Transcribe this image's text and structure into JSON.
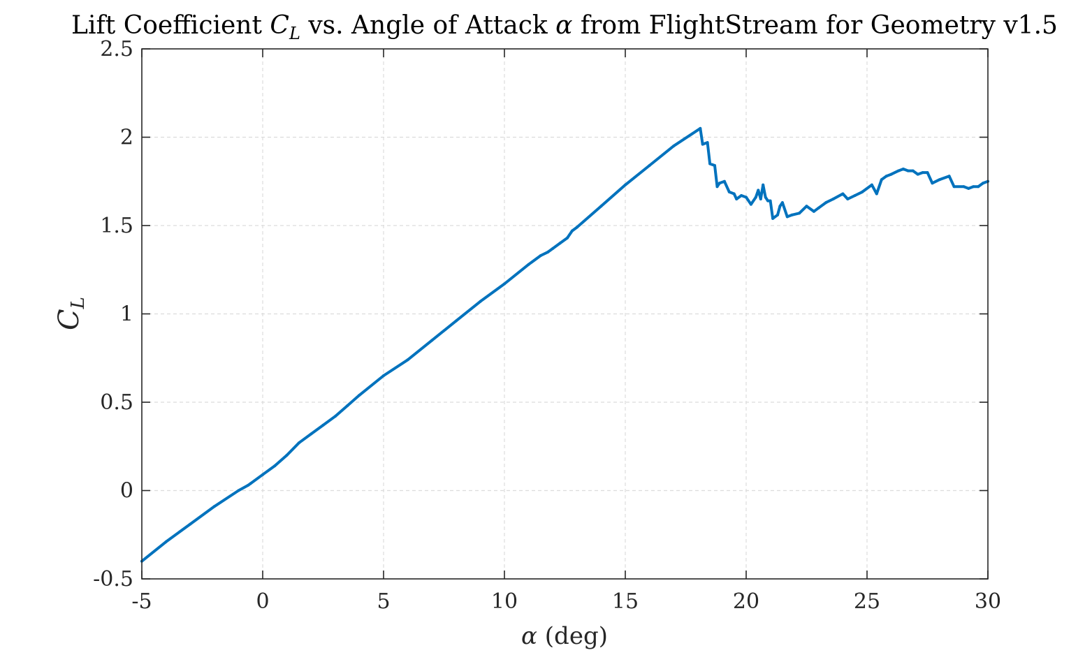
{
  "chart_data": {
    "type": "line",
    "title": {
      "prefix": "Lift Coefficient ",
      "math1": "C",
      "math1_sub": "L",
      "middle": " vs. Angle of Attack ",
      "math2": "α",
      "suffix": " from FlightStream for Geometry v1.5"
    },
    "xlabel": {
      "symbol": "α",
      "unit": " (deg)"
    },
    "ylabel": {
      "symbol": "C",
      "sub": "L"
    },
    "xlim": [
      -5,
      30
    ],
    "ylim": [
      -0.5,
      2.5
    ],
    "xticks": [
      -5,
      0,
      5,
      10,
      15,
      20,
      25,
      30
    ],
    "xtick_labels": [
      "-5",
      "0",
      "5",
      "10",
      "15",
      "20",
      "25",
      "30"
    ],
    "yticks": [
      -0.5,
      0,
      0.5,
      1,
      1.5,
      2,
      2.5
    ],
    "ytick_labels": [
      "-0.5",
      "0",
      "0.5",
      "1",
      "1.5",
      "2",
      "2.5"
    ],
    "grid": true,
    "line_color": "#0072BD",
    "series": [
      {
        "x": [
          -5,
          -4,
          -3,
          -2,
          -1,
          -0.6,
          -0.5,
          0,
          0.5,
          1,
          1.5,
          2,
          2.5,
          3,
          3.5,
          4,
          5,
          6,
          7,
          8,
          9,
          10,
          11,
          11.5,
          11.8,
          12,
          12.3,
          12.6,
          12.8,
          13,
          14,
          15,
          16,
          17,
          18.1,
          18.2,
          18.4,
          18.5,
          18.7,
          18.8,
          18.9,
          19.1,
          19.3,
          19.5,
          19.6,
          19.8,
          20.0,
          20.2,
          20.4,
          20.5,
          20.6,
          20.7,
          20.8,
          20.9,
          21.0,
          21.1,
          21.3,
          21.4,
          21.5,
          21.7,
          21.9,
          22.2,
          22.5,
          22.8,
          23.0,
          23.3,
          23.6,
          24.0,
          24.2,
          24.5,
          24.8,
          25.2,
          25.4,
          25.6,
          25.8,
          26.0,
          26.3,
          26.5,
          26.7,
          26.9,
          27.1,
          27.3,
          27.5,
          27.7,
          28.0,
          28.4,
          28.6,
          29.0,
          29.2,
          29.4,
          29.6,
          29.8,
          30.0
        ],
        "y": [
          -0.4,
          -0.29,
          -0.19,
          -0.09,
          0.0,
          0.03,
          0.04,
          0.09,
          0.14,
          0.2,
          0.27,
          0.32,
          0.37,
          0.42,
          0.48,
          0.54,
          0.65,
          0.74,
          0.85,
          0.96,
          1.07,
          1.17,
          1.28,
          1.33,
          1.35,
          1.37,
          1.4,
          1.43,
          1.47,
          1.49,
          1.61,
          1.73,
          1.84,
          1.95,
          2.05,
          1.96,
          1.97,
          1.85,
          1.84,
          1.72,
          1.74,
          1.75,
          1.69,
          1.68,
          1.65,
          1.67,
          1.66,
          1.62,
          1.66,
          1.7,
          1.65,
          1.73,
          1.66,
          1.64,
          1.64,
          1.54,
          1.56,
          1.61,
          1.63,
          1.55,
          1.56,
          1.57,
          1.61,
          1.58,
          1.6,
          1.63,
          1.65,
          1.68,
          1.65,
          1.67,
          1.69,
          1.73,
          1.68,
          1.76,
          1.78,
          1.79,
          1.81,
          1.82,
          1.81,
          1.81,
          1.79,
          1.8,
          1.8,
          1.74,
          1.76,
          1.78,
          1.72,
          1.72,
          1.71,
          1.72,
          1.72,
          1.74,
          1.75
        ]
      }
    ]
  }
}
